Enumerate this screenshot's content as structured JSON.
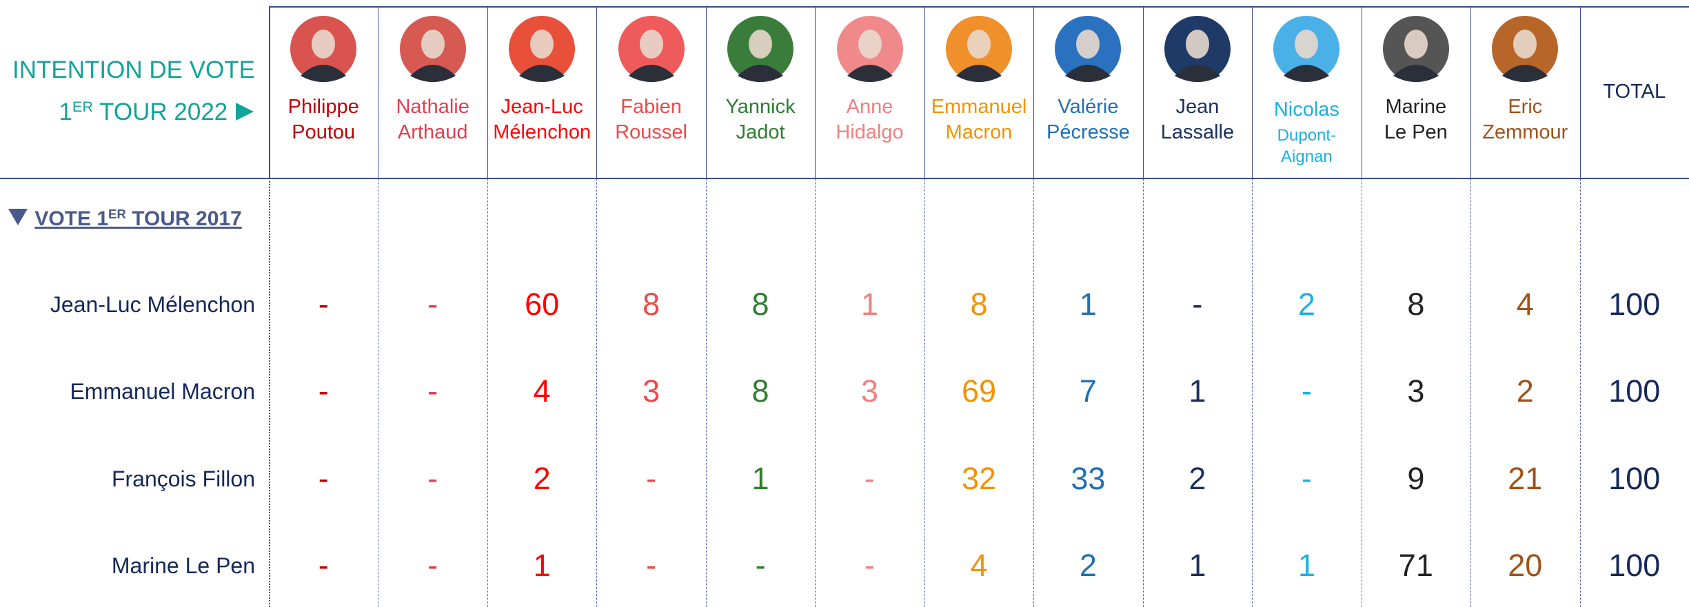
{
  "header": {
    "title_line1": "INTENTION DE VOTE",
    "title_line2": {
      "main": "1",
      "sup": "ER",
      "rest": "TOUR 2022"
    }
  },
  "columns": [
    {
      "lines": [
        "Philippe",
        "Poutou"
      ],
      "color": "#c00000",
      "photo_bg": "#d9534f"
    },
    {
      "lines": [
        "Nathalie",
        "Arthaud"
      ],
      "color": "#e0404f",
      "photo_bg": "#d65a52"
    },
    {
      "lines": [
        "Jean-Luc",
        "Mélenchon"
      ],
      "color": "#ff0000",
      "photo_bg": "#e8503a"
    },
    {
      "lines": [
        "Fabien",
        "Roussel"
      ],
      "color": "#f04848",
      "photo_bg": "#ef5a5a"
    },
    {
      "lines": [
        "Yannick",
        "Jadot"
      ],
      "color": "#2e7d32",
      "photo_bg": "#3a7d3a"
    },
    {
      "lines": [
        "Anne",
        "Hidalgo"
      ],
      "color": "#f08080",
      "photo_bg": "#f08a8a"
    },
    {
      "lines": [
        "Emmanuel",
        "Macron"
      ],
      "color": "#f39200",
      "photo_bg": "#f0902a"
    },
    {
      "lines": [
        "Valérie",
        "Pécresse"
      ],
      "color": "#1f6fb5",
      "photo_bg": "#2a72c0"
    },
    {
      "lines": [
        "Jean",
        "Lassalle"
      ],
      "color": "#1b2f5e",
      "photo_bg": "#1f3a66"
    },
    {
      "lines": [
        "Nicolas",
        "Dupont-",
        "Aignan"
      ],
      "color": "#1ab0e8",
      "photo_bg": "#4ab0e8"
    },
    {
      "lines": [
        "Marine",
        "Le Pen"
      ],
      "color": "#222222",
      "photo_bg": "#555555"
    },
    {
      "lines": [
        "Eric",
        "Zemmour"
      ],
      "color": "#a0521a",
      "photo_bg": "#b8652a"
    },
    {
      "lines": [
        "TOTAL"
      ],
      "color": "#14285a"
    }
  ],
  "section": {
    "main": "VOTE 1",
    "sup": "ER",
    "rest": "TOUR 2017"
  },
  "rows": [
    {
      "label": "Jean-Luc Mélenchon",
      "cells": [
        "-",
        "-",
        60,
        8,
        8,
        1,
        8,
        1,
        "-",
        2,
        8,
        4,
        100
      ]
    },
    {
      "label": "Emmanuel Macron",
      "cells": [
        "-",
        "-",
        4,
        3,
        8,
        3,
        69,
        7,
        1,
        "-",
        3,
        2,
        100
      ]
    },
    {
      "label": "François Fillon",
      "cells": [
        "-",
        "-",
        2,
        "-",
        1,
        "-",
        32,
        33,
        2,
        "-",
        9,
        21,
        100
      ]
    },
    {
      "label": "Marine Le Pen",
      "cells": [
        "-",
        "-",
        1,
        "-",
        "-",
        "-",
        4,
        2,
        1,
        1,
        71,
        20,
        100
      ]
    }
  ]
}
